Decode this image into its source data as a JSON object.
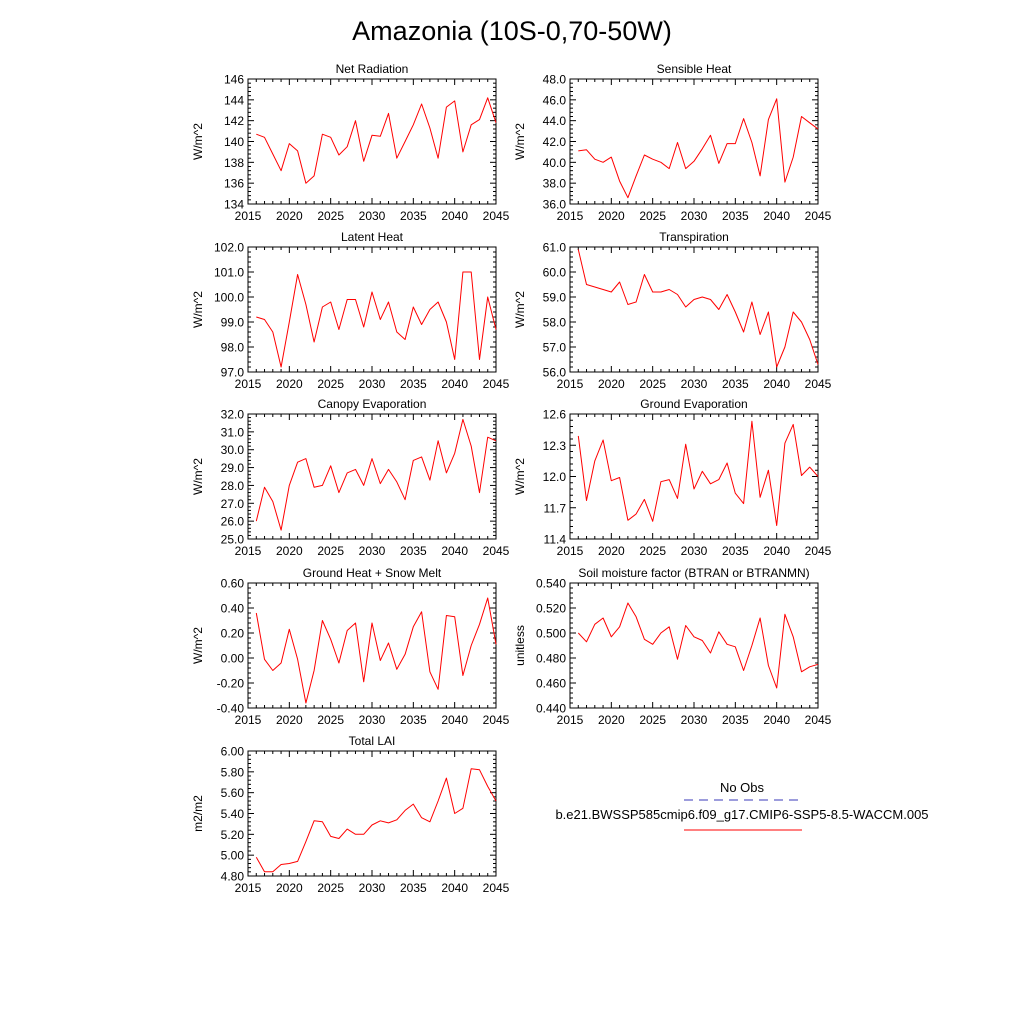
{
  "figure": {
    "title": "Amazonia (10S-0,70-50W)",
    "legend": {
      "obs_label": "No Obs",
      "obs_color": "#3a3ab8",
      "model_label": "b.e21.BWSSP585cmip6.f09_g17.CMIP6-SSP5-8.5-WACCM.005",
      "model_color": "#ff0000"
    }
  },
  "chart_data": [
    {
      "type": "line",
      "title": "Net Radiation",
      "ylabel": "W/m^2",
      "xlabel": "",
      "xlim": [
        2015,
        2045
      ],
      "ylim": [
        134,
        146
      ],
      "yticks": [
        134,
        136,
        138,
        140,
        142,
        144,
        146
      ],
      "ytick_labels": [
        "134",
        "136",
        "138",
        "140",
        "142",
        "144",
        "146"
      ],
      "xticks": [
        2015,
        2020,
        2025,
        2030,
        2035,
        2040,
        2045
      ],
      "series": [
        {
          "name": "b.e21.BWSSP585cmip6.f09_g17.CMIP6-SSP5-8.5-WACCM.005",
          "color": "#ff0000",
          "x": [
            2016,
            2017,
            2018,
            2019,
            2020,
            2021,
            2022,
            2023,
            2024,
            2025,
            2026,
            2027,
            2028,
            2029,
            2030,
            2031,
            2032,
            2033,
            2034,
            2035,
            2036,
            2037,
            2038,
            2039,
            2040,
            2041,
            2042,
            2043,
            2044,
            2045
          ],
          "y": [
            140.7,
            140.4,
            138.8,
            137.2,
            139.8,
            139.1,
            136.0,
            136.7,
            140.7,
            140.4,
            138.7,
            139.5,
            142.0,
            138.1,
            140.6,
            140.5,
            142.7,
            138.4,
            140.0,
            141.6,
            143.6,
            141.3,
            138.4,
            143.3,
            143.9,
            139.0,
            141.6,
            142.1,
            144.2,
            141.8
          ]
        }
      ]
    },
    {
      "type": "line",
      "title": "Sensible Heat",
      "ylabel": "W/m^2",
      "xlabel": "",
      "xlim": [
        2015,
        2045
      ],
      "ylim": [
        36,
        48
      ],
      "yticks": [
        36,
        38,
        40,
        42,
        44,
        46,
        48
      ],
      "ytick_labels": [
        "36.0",
        "38.0",
        "40.0",
        "42.0",
        "44.0",
        "46.0",
        "48.0"
      ],
      "xticks": [
        2015,
        2020,
        2025,
        2030,
        2035,
        2040,
        2045
      ],
      "series": [
        {
          "name": "b.e21.BWSSP585cmip6.f09_g17.CMIP6-SSP5-8.5-WACCM.005",
          "color": "#ff0000",
          "x": [
            2016,
            2017,
            2018,
            2019,
            2020,
            2021,
            2022,
            2023,
            2024,
            2025,
            2026,
            2027,
            2028,
            2029,
            2030,
            2031,
            2032,
            2033,
            2034,
            2035,
            2036,
            2037,
            2038,
            2039,
            2040,
            2041,
            2042,
            2043,
            2044,
            2045
          ],
          "y": [
            41.1,
            41.2,
            40.3,
            40.0,
            40.5,
            38.2,
            36.6,
            38.7,
            40.7,
            40.3,
            40.0,
            39.4,
            41.9,
            39.4,
            40.1,
            41.3,
            42.6,
            39.9,
            41.8,
            41.8,
            44.2,
            41.9,
            38.7,
            44.1,
            46.1,
            38.1,
            40.5,
            44.4,
            43.8,
            43.2
          ]
        }
      ]
    },
    {
      "type": "line",
      "title": "Latent Heat",
      "ylabel": "W/m^2",
      "xlabel": "",
      "xlim": [
        2015,
        2045
      ],
      "ylim": [
        97,
        102
      ],
      "yticks": [
        97,
        98,
        99,
        100,
        101,
        102
      ],
      "ytick_labels": [
        "97.0",
        "98.0",
        "99.0",
        "100.0",
        "101.0",
        "102.0"
      ],
      "xticks": [
        2015,
        2020,
        2025,
        2030,
        2035,
        2040,
        2045
      ],
      "series": [
        {
          "name": "b.e21.BWSSP585cmip6.f09_g17.CMIP6-SSP5-8.5-WACCM.005",
          "color": "#ff0000",
          "x": [
            2016,
            2017,
            2018,
            2019,
            2020,
            2021,
            2022,
            2023,
            2024,
            2025,
            2026,
            2027,
            2028,
            2029,
            2030,
            2031,
            2032,
            2033,
            2034,
            2035,
            2036,
            2037,
            2038,
            2039,
            2040,
            2041,
            2042,
            2043,
            2044,
            2045
          ],
          "y": [
            99.2,
            99.1,
            98.6,
            97.2,
            99.0,
            100.9,
            99.7,
            98.2,
            99.6,
            99.8,
            98.7,
            99.9,
            99.9,
            98.8,
            100.2,
            99.1,
            99.8,
            98.6,
            98.3,
            99.6,
            98.9,
            99.5,
            99.8,
            99.0,
            97.5,
            101.0,
            101.0,
            97.5,
            100.0,
            98.7
          ]
        }
      ]
    },
    {
      "type": "line",
      "title": "Transpiration",
      "ylabel": "W/m^2",
      "xlabel": "",
      "xlim": [
        2015,
        2045
      ],
      "ylim": [
        56,
        61
      ],
      "yticks": [
        56,
        57,
        58,
        59,
        60,
        61
      ],
      "ytick_labels": [
        "56.0",
        "57.0",
        "58.0",
        "59.0",
        "60.0",
        "61.0"
      ],
      "xticks": [
        2015,
        2020,
        2025,
        2030,
        2035,
        2040,
        2045
      ],
      "series": [
        {
          "name": "b.e21.BWSSP585cmip6.f09_g17.CMIP6-SSP5-8.5-WACCM.005",
          "color": "#ff0000",
          "x": [
            2016,
            2017,
            2018,
            2019,
            2020,
            2021,
            2022,
            2023,
            2024,
            2025,
            2026,
            2027,
            2028,
            2029,
            2030,
            2031,
            2032,
            2033,
            2034,
            2035,
            2036,
            2037,
            2038,
            2039,
            2040,
            2041,
            2042,
            2043,
            2044,
            2045
          ],
          "y": [
            60.9,
            59.5,
            59.4,
            59.3,
            59.2,
            59.6,
            58.7,
            58.8,
            59.9,
            59.2,
            59.2,
            59.3,
            59.1,
            58.6,
            58.9,
            59.0,
            58.9,
            58.5,
            59.1,
            58.4,
            57.6,
            58.8,
            57.5,
            58.4,
            56.2,
            57.0,
            58.4,
            58.0,
            57.3,
            56.3
          ]
        }
      ]
    },
    {
      "type": "line",
      "title": "Canopy Evaporation",
      "ylabel": "W/m^2",
      "xlabel": "",
      "xlim": [
        2015,
        2045
      ],
      "ylim": [
        25,
        32
      ],
      "yticks": [
        25,
        26,
        27,
        28,
        29,
        30,
        31,
        32
      ],
      "ytick_labels": [
        "25.0",
        "26.0",
        "27.0",
        "28.0",
        "29.0",
        "30.0",
        "31.0",
        "32.0"
      ],
      "xticks": [
        2015,
        2020,
        2025,
        2030,
        2035,
        2040,
        2045
      ],
      "series": [
        {
          "name": "b.e21.BWSSP585cmip6.f09_g17.CMIP6-SSP5-8.5-WACCM.005",
          "color": "#ff0000",
          "x": [
            2016,
            2017,
            2018,
            2019,
            2020,
            2021,
            2022,
            2023,
            2024,
            2025,
            2026,
            2027,
            2028,
            2029,
            2030,
            2031,
            2032,
            2033,
            2034,
            2035,
            2036,
            2037,
            2038,
            2039,
            2040,
            2041,
            2042,
            2043,
            2044,
            2045
          ],
          "y": [
            26.0,
            27.9,
            27.1,
            25.5,
            28.0,
            29.3,
            29.5,
            27.9,
            28.0,
            29.1,
            27.6,
            28.7,
            28.9,
            28.0,
            29.5,
            28.1,
            28.9,
            28.2,
            27.2,
            29.4,
            29.6,
            28.3,
            30.5,
            28.7,
            29.8,
            31.7,
            30.2,
            27.6,
            30.7,
            30.5
          ]
        }
      ]
    },
    {
      "type": "line",
      "title": "Ground Evaporation",
      "ylabel": "W/m^2",
      "xlabel": "",
      "xlim": [
        2015,
        2045
      ],
      "ylim": [
        11.4,
        12.6
      ],
      "yticks": [
        11.4,
        11.7,
        12.0,
        12.3,
        12.6
      ],
      "ytick_labels": [
        "11.4",
        "11.7",
        "12.0",
        "12.3",
        "12.6"
      ],
      "xticks": [
        2015,
        2020,
        2025,
        2030,
        2035,
        2040,
        2045
      ],
      "series": [
        {
          "name": "b.e21.BWSSP585cmip6.f09_g17.CMIP6-SSP5-8.5-WACCM.005",
          "color": "#ff0000",
          "x": [
            2016,
            2017,
            2018,
            2019,
            2020,
            2021,
            2022,
            2023,
            2024,
            2025,
            2026,
            2027,
            2028,
            2029,
            2030,
            2031,
            2032,
            2033,
            2034,
            2035,
            2036,
            2037,
            2038,
            2039,
            2040,
            2041,
            2042,
            2043,
            2044,
            2045
          ],
          "y": [
            12.39,
            11.77,
            12.15,
            12.35,
            11.96,
            11.99,
            11.58,
            11.64,
            11.78,
            11.57,
            11.95,
            11.97,
            11.79,
            12.31,
            11.88,
            12.05,
            11.93,
            11.97,
            12.13,
            11.84,
            11.74,
            12.53,
            11.8,
            12.06,
            11.53,
            12.32,
            12.5,
            12.01,
            12.09,
            12.0
          ]
        }
      ]
    },
    {
      "type": "line",
      "title": "Ground Heat + Snow Melt",
      "ylabel": "W/m^2",
      "xlabel": "",
      "xlim": [
        2015,
        2045
      ],
      "ylim": [
        -0.4,
        0.6
      ],
      "yticks": [
        -0.4,
        -0.2,
        0.0,
        0.2,
        0.4,
        0.6
      ],
      "ytick_labels": [
        "-0.40",
        "-0.20",
        "0.00",
        "0.20",
        "0.40",
        "0.60"
      ],
      "xticks": [
        2015,
        2020,
        2025,
        2030,
        2035,
        2040,
        2045
      ],
      "series": [
        {
          "name": "b.e21.BWSSP585cmip6.f09_g17.CMIP6-SSP5-8.5-WACCM.005",
          "color": "#ff0000",
          "x": [
            2016,
            2017,
            2018,
            2019,
            2020,
            2021,
            2022,
            2023,
            2024,
            2025,
            2026,
            2027,
            2028,
            2029,
            2030,
            2031,
            2032,
            2033,
            2034,
            2035,
            2036,
            2037,
            2038,
            2039,
            2040,
            2041,
            2042,
            2043,
            2044,
            2045
          ],
          "y": [
            0.36,
            -0.01,
            -0.1,
            -0.04,
            0.23,
            -0.01,
            -0.36,
            -0.1,
            0.3,
            0.15,
            -0.04,
            0.22,
            0.28,
            -0.19,
            0.28,
            -0.02,
            0.12,
            -0.09,
            0.03,
            0.25,
            0.37,
            -0.11,
            -0.25,
            0.34,
            0.33,
            -0.14,
            0.1,
            0.27,
            0.48,
            0.11
          ]
        }
      ]
    },
    {
      "type": "line",
      "title": "Soil moisture factor (BTRAN or BTRANMN)",
      "ylabel": "unitless",
      "xlabel": "",
      "xlim": [
        2015,
        2045
      ],
      "ylim": [
        0.44,
        0.54
      ],
      "yticks": [
        0.44,
        0.46,
        0.48,
        0.5,
        0.52,
        0.54
      ],
      "ytick_labels": [
        "0.440",
        "0.460",
        "0.480",
        "0.500",
        "0.520",
        "0.540"
      ],
      "xticks": [
        2015,
        2020,
        2025,
        2030,
        2035,
        2040,
        2045
      ],
      "series": [
        {
          "name": "b.e21.BWSSP585cmip6.f09_g17.CMIP6-SSP5-8.5-WACCM.005",
          "color": "#ff0000",
          "x": [
            2016,
            2017,
            2018,
            2019,
            2020,
            2021,
            2022,
            2023,
            2024,
            2025,
            2026,
            2027,
            2028,
            2029,
            2030,
            2031,
            2032,
            2033,
            2034,
            2035,
            2036,
            2037,
            2038,
            2039,
            2040,
            2041,
            2042,
            2043,
            2044,
            2045
          ],
          "y": [
            0.5,
            0.493,
            0.507,
            0.512,
            0.497,
            0.505,
            0.524,
            0.513,
            0.495,
            0.491,
            0.5,
            0.505,
            0.479,
            0.506,
            0.497,
            0.494,
            0.484,
            0.501,
            0.491,
            0.489,
            0.47,
            0.49,
            0.512,
            0.474,
            0.456,
            0.515,
            0.497,
            0.469,
            0.473,
            0.475
          ]
        }
      ]
    },
    {
      "type": "line",
      "title": "Total LAI",
      "ylabel": "m2/m2",
      "xlabel": "",
      "xlim": [
        2015,
        2045
      ],
      "ylim": [
        4.8,
        6.0
      ],
      "yticks": [
        4.8,
        5.0,
        5.2,
        5.4,
        5.6,
        5.8,
        6.0
      ],
      "ytick_labels": [
        "4.80",
        "5.00",
        "5.20",
        "5.40",
        "5.60",
        "5.80",
        "6.00"
      ],
      "xticks": [
        2015,
        2020,
        2025,
        2030,
        2035,
        2040,
        2045
      ],
      "series": [
        {
          "name": "b.e21.BWSSP585cmip6.f09_g17.CMIP6-SSP5-8.5-WACCM.005",
          "color": "#ff0000",
          "x": [
            2016,
            2017,
            2018,
            2019,
            2020,
            2021,
            2022,
            2023,
            2024,
            2025,
            2026,
            2027,
            2028,
            2029,
            2030,
            2031,
            2032,
            2033,
            2034,
            2035,
            2036,
            2037,
            2038,
            2039,
            2040,
            2041,
            2042,
            2043,
            2044,
            2045
          ],
          "y": [
            4.98,
            4.84,
            4.84,
            4.91,
            4.92,
            4.94,
            5.13,
            5.33,
            5.32,
            5.18,
            5.16,
            5.25,
            5.2,
            5.2,
            5.29,
            5.33,
            5.31,
            5.34,
            5.43,
            5.49,
            5.36,
            5.32,
            5.52,
            5.74,
            5.4,
            5.45,
            5.83,
            5.82,
            5.66,
            5.52
          ]
        }
      ]
    }
  ]
}
